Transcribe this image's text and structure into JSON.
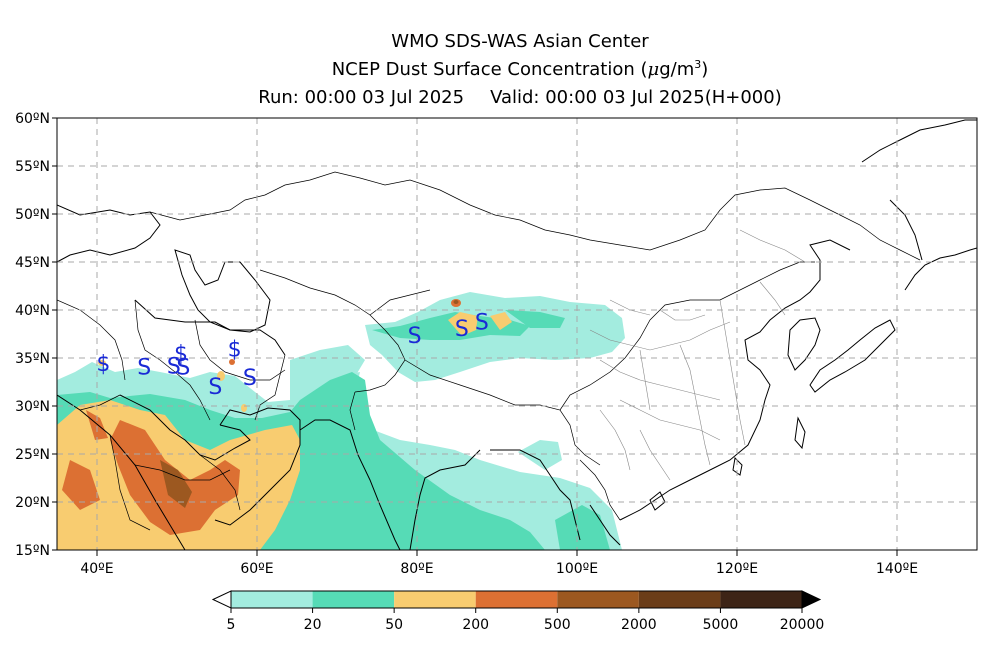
{
  "title": {
    "line1": "WMO SDS-WAS Asian Center",
    "line2_text": "NCEP Dust Surface Concentration",
    "line2_unit_mu": "μ",
    "line2_unit_base": "g/m",
    "line2_unit_exp": "3",
    "run": "Run: 00:00 03 Jul 2025",
    "valid": "Valid: 00:00 03 Jul 2025(H+000)"
  },
  "map": {
    "lon_range": [
      35,
      150
    ],
    "lat_range": [
      15,
      60
    ],
    "x_ticks": [
      {
        "lon": 40,
        "label": "40ºE"
      },
      {
        "lon": 60,
        "label": "60ºE"
      },
      {
        "lon": 80,
        "label": "80ºE"
      },
      {
        "lon": 100,
        "label": "100ºE"
      },
      {
        "lon": 120,
        "label": "120ºE"
      },
      {
        "lon": 140,
        "label": "140ºE"
      }
    ],
    "y_ticks": [
      {
        "lat": 60,
        "label": "60ºN"
      },
      {
        "lat": 55,
        "label": "55ºN"
      },
      {
        "lat": 50,
        "label": "50ºN"
      },
      {
        "lat": 45,
        "label": "45ºN"
      },
      {
        "lat": 40,
        "label": "40ºN"
      },
      {
        "lat": 35,
        "label": "35ºN"
      },
      {
        "lat": 30,
        "label": "30ºN"
      },
      {
        "lat": 25,
        "label": "25ºN"
      },
      {
        "lat": 20,
        "label": "20ºN"
      },
      {
        "lat": 15,
        "label": "15ºN"
      }
    ],
    "grid": true,
    "dust_markers": [
      {
        "symbol": "$",
        "lon": 40.8,
        "lat": 34.5
      },
      {
        "symbol": "S",
        "lon": 45.9,
        "lat": 34.1
      },
      {
        "symbol": "S",
        "lon": 49.6,
        "lat": 34.2
      },
      {
        "symbol": "$",
        "lon": 50.5,
        "lat": 35.5
      },
      {
        "symbol": "S",
        "lon": 50.8,
        "lat": 34.1
      },
      {
        "symbol": "S",
        "lon": 54.8,
        "lat": 32.1
      },
      {
        "symbol": "$",
        "lon": 57.2,
        "lat": 36.0
      },
      {
        "symbol": "S",
        "lon": 59.1,
        "lat": 33.0
      },
      {
        "symbol": "S",
        "lon": 79.7,
        "lat": 37.4
      },
      {
        "symbol": "S",
        "lon": 85.6,
        "lat": 38.1
      },
      {
        "symbol": "S",
        "lon": 88.1,
        "lat": 38.8
      }
    ],
    "marker_color": "#1a2ad6"
  },
  "colorbar": {
    "labels": [
      "5",
      "20",
      "50",
      "200",
      "500",
      "2000",
      "5000",
      "20000"
    ],
    "colors": [
      "#a3ecdf",
      "#56dbb6",
      "#f8cc70",
      "#dc7033",
      "#9c5820",
      "#6b3d18",
      "#3d2416"
    ]
  }
}
